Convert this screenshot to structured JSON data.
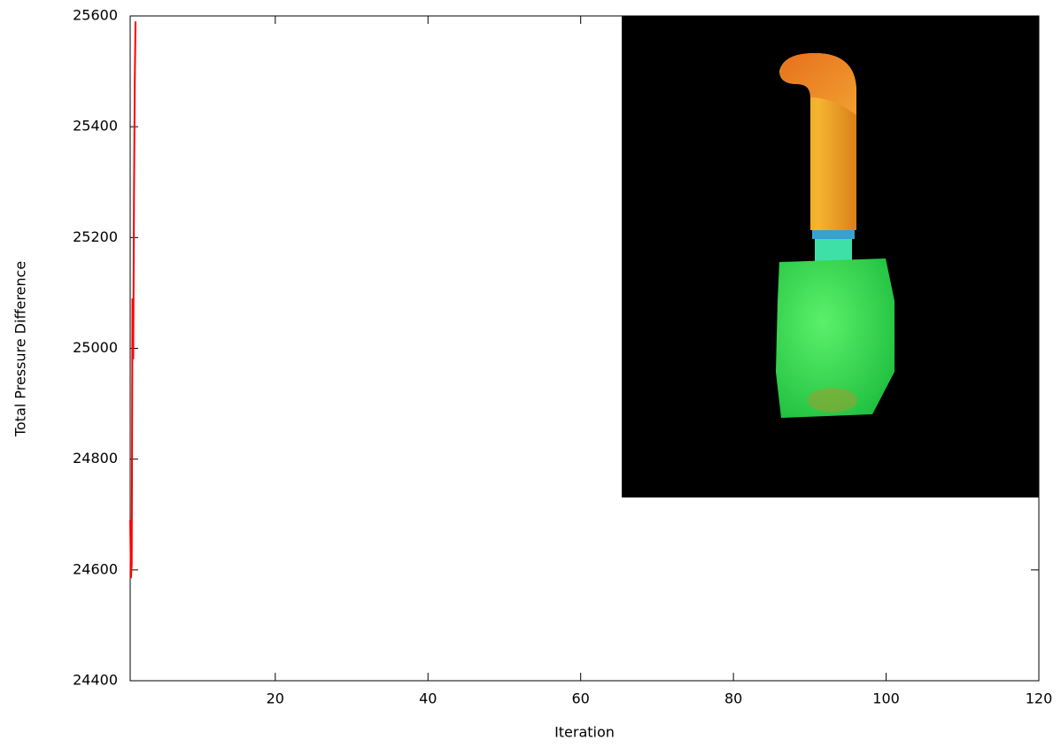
{
  "chart_data": {
    "type": "line",
    "x_label": "Iteration",
    "y_label": "Total Pressure Difference",
    "series": [
      {
        "color": "#ff0000",
        "x": [
          1,
          1.1,
          1.2,
          1.3,
          1.4,
          1.5,
          1.6,
          1.7
        ],
        "values": [
          24690,
          24585,
          24610,
          25090,
          24980,
          25280,
          25480,
          25590
        ]
      }
    ],
    "xlim": [
      1,
      120
    ],
    "xticks": [
      20,
      40,
      60,
      80,
      100,
      120
    ],
    "ylim": [
      24400,
      25600
    ],
    "yticks": [
      24400,
      24600,
      24800,
      25000,
      25200,
      25400,
      25600
    ]
  }
}
